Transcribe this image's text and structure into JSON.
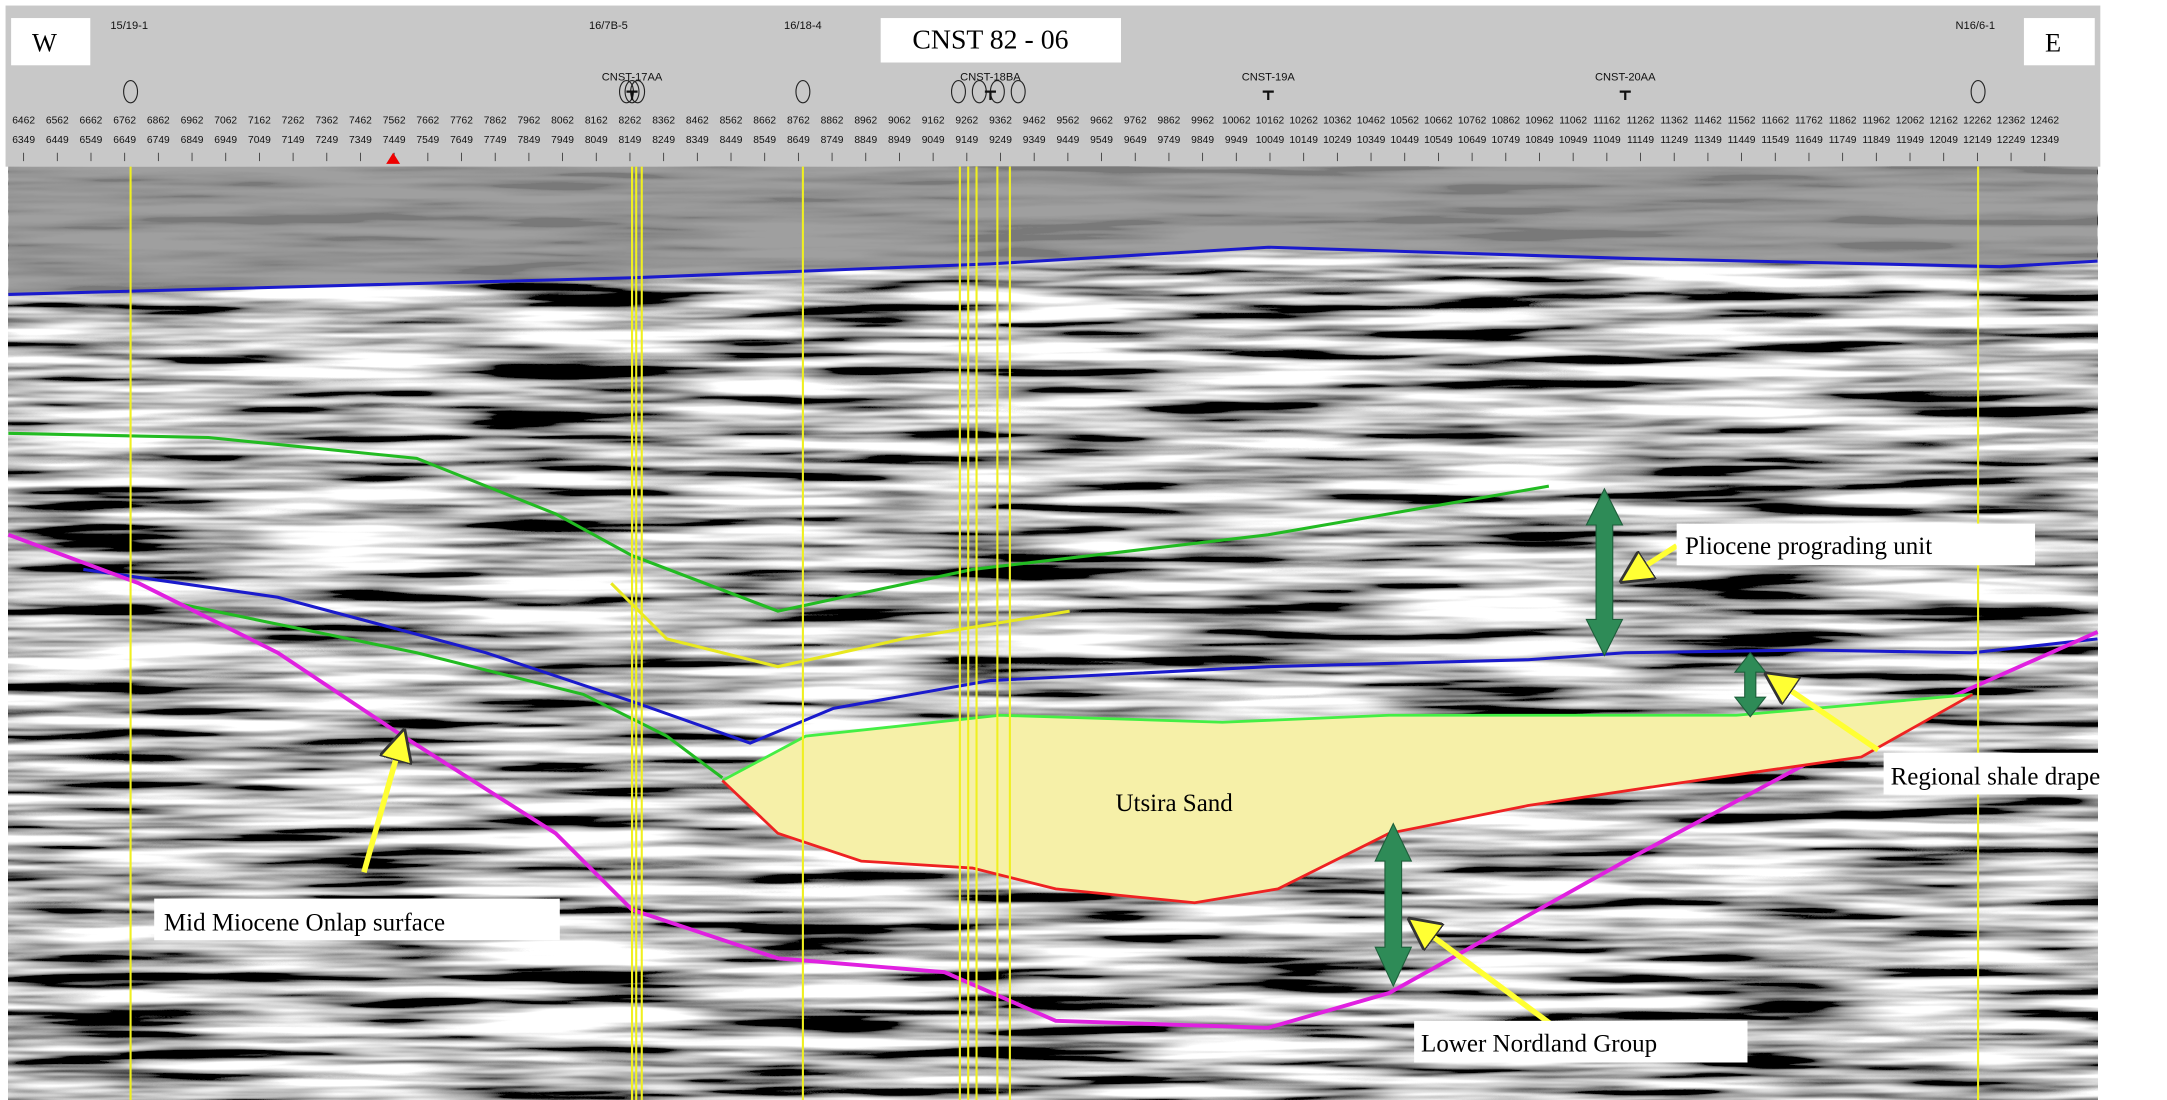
{
  "header": {
    "title": "CNST 82 - 06",
    "west": "W",
    "east": "E"
  },
  "well_labels": [
    "15/19-1",
    "16/7B-5",
    "16/18-4",
    "N16/6-1"
  ],
  "cnst_wells": [
    "CNST-17AA",
    "CNST-18BA",
    "CNST-19A",
    "CNST-20AA"
  ],
  "trace_axis": {
    "upper": [
      6462,
      6562,
      6662,
      6762,
      6862,
      6962,
      7062,
      7162,
      7262,
      7362,
      7462,
      7562,
      7662,
      7762,
      7862,
      7962,
      8062,
      8162,
      8262,
      8362,
      8462,
      8562,
      8662,
      8762,
      8862,
      8962,
      9062,
      9162,
      9262,
      9362,
      9462,
      9562,
      9662,
      9762,
      9862,
      9962,
      10062,
      10162,
      10262,
      10362,
      10462,
      10562,
      10662,
      10762,
      10862,
      10962,
      11062,
      11162,
      11262,
      11362,
      11462,
      11562,
      11662,
      11762,
      11862,
      11962,
      12062,
      12162,
      12262,
      12362,
      12462
    ],
    "lower": [
      6349,
      6449,
      6549,
      6649,
      6749,
      6849,
      6949,
      7049,
      7149,
      7249,
      7349,
      7449,
      7549,
      7649,
      7749,
      7849,
      7949,
      8049,
      8149,
      8249,
      8349,
      8449,
      8549,
      8649,
      8749,
      8849,
      8949,
      9049,
      9149,
      9249,
      9349,
      9449,
      9549,
      9649,
      9749,
      9849,
      9949,
      10049,
      10149,
      10249,
      10349,
      10449,
      10549,
      10649,
      10749,
      10849,
      10949,
      11049,
      11149,
      11249,
      11349,
      11449,
      11549,
      11649,
      11749,
      11849,
      11949,
      12049,
      12149,
      12249,
      12349
    ]
  },
  "annotations": {
    "pliocene": "Pliocene prograding unit",
    "shale": "Regional shale drape",
    "utsira": "Utsira Sand",
    "onlap": "Mid Miocene Onlap surface",
    "nordland": "Lower Nordland Group"
  }
}
